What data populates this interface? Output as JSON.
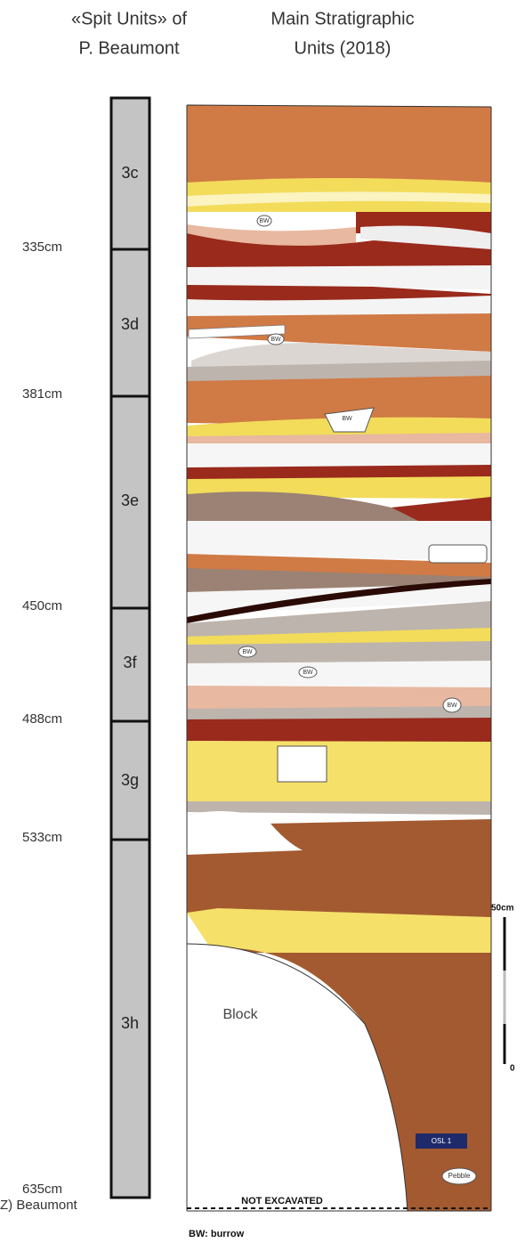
{
  "header": {
    "spit_title": [
      "«Spit Units» of",
      "P. Beaumont"
    ],
    "main_title": [
      "Main Stratigraphic",
      "Units (2018)"
    ]
  },
  "spit_units": [
    "3c",
    "3d",
    "3e",
    "3f",
    "3g",
    "3h"
  ],
  "depths": [
    "335cm",
    "381cm",
    "450cm",
    "488cm",
    "533cm",
    "635cm"
  ],
  "credit": "(Z) Beaumont",
  "section": {
    "burrows": [
      "BW",
      "BW",
      "BW",
      "BW",
      "BW",
      "BW"
    ],
    "block": "Block",
    "osl": "OSL 1",
    "pebble": "Pebble",
    "not_excavated": "NOT EXCAVATED"
  },
  "scale": {
    "top": "50cm",
    "bottom": "0"
  },
  "legend": "BW: burrow"
}
